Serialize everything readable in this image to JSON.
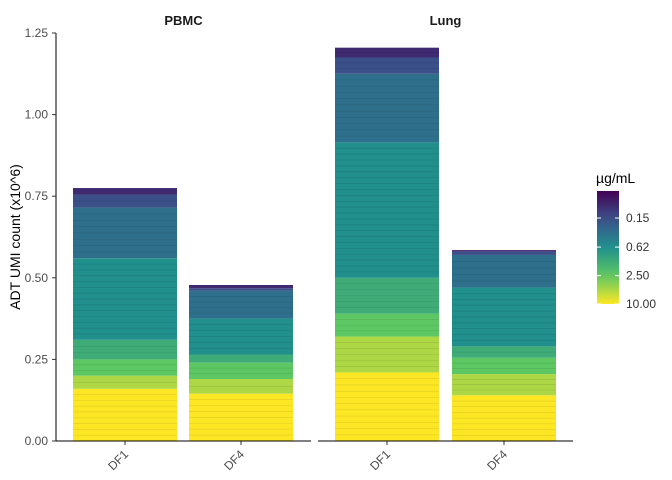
{
  "chart_data": {
    "type": "bar",
    "stacked": true,
    "ylabel": "ADT UMI count (x10^6)",
    "ylim": [
      0,
      1.25
    ],
    "yticks": [
      0,
      0.25,
      0.5,
      0.75,
      1.0,
      1.25
    ],
    "ytick_labels": [
      "0.00",
      "0.25",
      "0.50",
      "0.75",
      "1.00",
      "1.25"
    ],
    "legend": {
      "title": "µg/mL",
      "position": "right",
      "scale": "log",
      "range": [
        0.04,
        10.0
      ],
      "ticks": [
        0.15,
        0.62,
        2.5,
        10.0
      ],
      "tick_labels": [
        "0.15",
        "0.62",
        "2.50",
        "10.00"
      ],
      "palette": [
        "#440154",
        "#3b528b",
        "#21908c",
        "#5dc863",
        "#fde725"
      ]
    },
    "facets": [
      {
        "label": "PBMC",
        "categories": [
          "DF1",
          "DF4"
        ],
        "bars": [
          {
            "category": "DF1",
            "total": 0.775,
            "segments": [
              {
                "conc": 10.0,
                "value": 0.16
              },
              {
                "conc": 5.0,
                "value": 0.04
              },
              {
                "conc": 2.5,
                "value": 0.05
              },
              {
                "conc": 1.25,
                "value": 0.06
              },
              {
                "conc": 0.62,
                "value": 0.25
              },
              {
                "conc": 0.31,
                "value": 0.155
              },
              {
                "conc": 0.15,
                "value": 0.04
              },
              {
                "conc": 0.08,
                "value": 0.02
              }
            ]
          },
          {
            "category": "DF4",
            "total": 0.478,
            "segments": [
              {
                "conc": 10.0,
                "value": 0.145
              },
              {
                "conc": 5.0,
                "value": 0.045
              },
              {
                "conc": 2.5,
                "value": 0.05
              },
              {
                "conc": 1.25,
                "value": 0.025
              },
              {
                "conc": 0.62,
                "value": 0.11
              },
              {
                "conc": 0.31,
                "value": 0.085
              },
              {
                "conc": 0.15,
                "value": 0.008
              },
              {
                "conc": 0.08,
                "value": 0.01
              }
            ]
          }
        ]
      },
      {
        "label": "Lung",
        "categories": [
          "DF1",
          "DF4"
        ],
        "bars": [
          {
            "category": "DF1",
            "total": 1.205,
            "segments": [
              {
                "conc": 10.0,
                "value": 0.21
              },
              {
                "conc": 5.0,
                "value": 0.11
              },
              {
                "conc": 2.5,
                "value": 0.07
              },
              {
                "conc": 1.25,
                "value": 0.11
              },
              {
                "conc": 0.62,
                "value": 0.415
              },
              {
                "conc": 0.31,
                "value": 0.21
              },
              {
                "conc": 0.15,
                "value": 0.05
              },
              {
                "conc": 0.08,
                "value": 0.03
              }
            ]
          },
          {
            "category": "DF4",
            "total": 0.585,
            "segments": [
              {
                "conc": 10.0,
                "value": 0.14
              },
              {
                "conc": 5.0,
                "value": 0.065
              },
              {
                "conc": 2.5,
                "value": 0.05
              },
              {
                "conc": 1.25,
                "value": 0.035
              },
              {
                "conc": 0.62,
                "value": 0.18
              },
              {
                "conc": 0.31,
                "value": 0.1
              },
              {
                "conc": 0.15,
                "value": 0.01
              },
              {
                "conc": 0.08,
                "value": 0.005
              }
            ]
          }
        ]
      }
    ]
  }
}
